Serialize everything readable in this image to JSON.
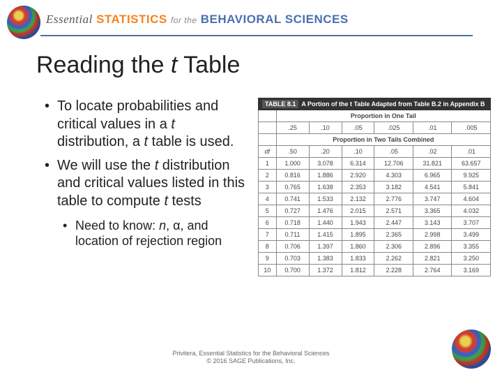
{
  "brand": {
    "essential": "Essential",
    "statistics": "STATISTICS",
    "for": "for the",
    "bs": "BEHAVIORAL SCIENCES"
  },
  "title_pre": "Reading the ",
  "title_ital": "t",
  "title_post": " Table",
  "bullets": [
    "To locate probabilities and critical values in a <i>t</i> distribution, a <i>t</i> table is used.",
    "We will use the <i>t</i> distribution and critical values listed in this table to compute <i>t</i> tests"
  ],
  "subbullet": "Need to know: <i>n</i>, α, and location of rejection region",
  "table": {
    "banner_label": "TABLE 8.1",
    "banner_text": "A Portion of the t Table Adapted from Table B.2 in Appendix B",
    "prop_one": "Proportion in One Tail",
    "prop_two": "Proportion in Two Tails Combined",
    "one_tail": [
      ".25",
      ".10",
      ".05",
      ".025",
      ".01",
      ".005"
    ],
    "two_tail": [
      ".50",
      ".20",
      ".10",
      ".05",
      ".02",
      ".01"
    ],
    "df_label": "df",
    "rows": [
      [
        "1",
        "1.000",
        "3.078",
        "6.314",
        "12.706",
        "31.821",
        "63.657"
      ],
      [
        "2",
        "0.816",
        "1.886",
        "2.920",
        "4.303",
        "6.965",
        "9.925"
      ],
      [
        "3",
        "0.765",
        "1.638",
        "2.353",
        "3.182",
        "4.541",
        "5.841"
      ],
      [
        "4",
        "0.741",
        "1.533",
        "2.132",
        "2.776",
        "3.747",
        "4.604"
      ],
      [
        "5",
        "0.727",
        "1.476",
        "2.015",
        "2.571",
        "3.365",
        "4.032"
      ],
      [
        "6",
        "0.718",
        "1.440",
        "1.943",
        "2.447",
        "3.143",
        "3.707"
      ],
      [
        "7",
        "0.711",
        "1.415",
        "1.895",
        "2.365",
        "2.998",
        "3.499"
      ],
      [
        "8",
        "0.706",
        "1.397",
        "1.860",
        "2.306",
        "2.896",
        "3.355"
      ],
      [
        "9",
        "0.703",
        "1.383",
        "1.833",
        "2.262",
        "2.821",
        "3.250"
      ],
      [
        "10",
        "0.700",
        "1.372",
        "1.812",
        "2.228",
        "2.764",
        "3.169"
      ]
    ]
  },
  "footer": {
    "line1": "Privitera, Essential Statistics for the Behavioral Sciences",
    "line2": "© 2016 SAGE Publications, Inc."
  }
}
